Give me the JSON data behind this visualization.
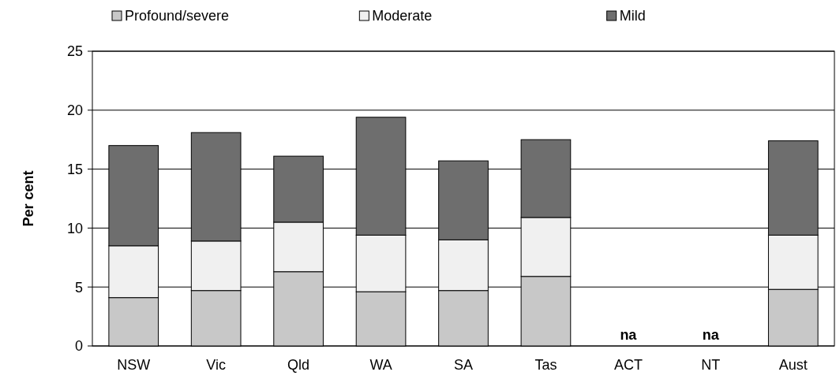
{
  "chart_data": {
    "type": "bar",
    "stacked": true,
    "ylabel": "Per cent",
    "categories": [
      "NSW",
      "Vic",
      "Qld",
      "WA",
      "SA",
      "Tas",
      "ACT",
      "NT",
      "Aust"
    ],
    "series": [
      {
        "name": "Profound/severe",
        "color": "#c8c8c8",
        "values": [
          4.1,
          4.7,
          6.3,
          4.6,
          4.7,
          5.9,
          null,
          null,
          4.8
        ]
      },
      {
        "name": "Moderate",
        "color": "#f0f0f0",
        "values": [
          4.4,
          4.2,
          4.2,
          4.8,
          4.3,
          5.0,
          null,
          null,
          4.6
        ]
      },
      {
        "name": "Mild",
        "color": "#6e6e6e",
        "values": [
          8.5,
          9.2,
          5.6,
          10.0,
          6.7,
          6.6,
          null,
          null,
          8.0
        ]
      }
    ],
    "ylim": [
      0,
      25
    ],
    "yticks": [
      0,
      5,
      10,
      15,
      20,
      25
    ],
    "grid": "y",
    "legend": "top",
    "annotations": [
      "na",
      "na"
    ]
  }
}
